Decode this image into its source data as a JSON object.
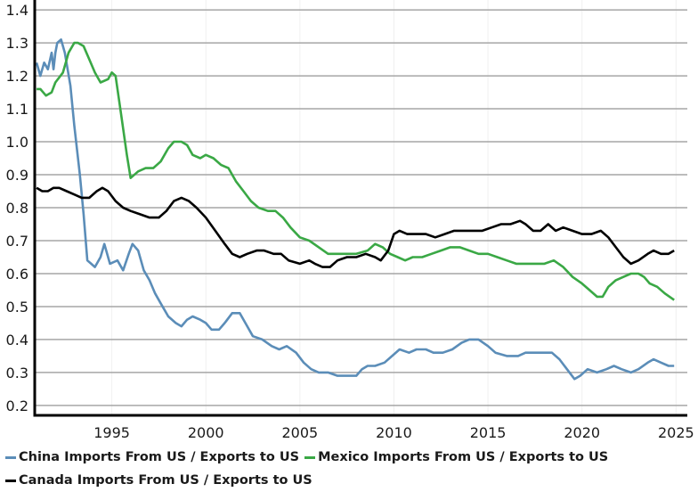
{
  "chart_data": {
    "type": "line",
    "title": "",
    "xlabel": "",
    "ylabel": "",
    "xlim": [
      1990.9,
      2025.6
    ],
    "ylim": [
      0.17,
      1.43
    ],
    "grid": {
      "horizontal": true,
      "vertical": "faint"
    },
    "legend_position": "bottom",
    "x_ticks": [
      1995,
      2000,
      2005,
      2010,
      2015,
      2020,
      2025
    ],
    "x_tick_labels": [
      "1995",
      "2000",
      "2005",
      "2010",
      "2015",
      "2020",
      "2025"
    ],
    "y_ticks": [
      0.2,
      0.3,
      0.4,
      0.5,
      0.6,
      0.7,
      0.8,
      0.9,
      1.0,
      1.1,
      1.2,
      1.3,
      1.4
    ],
    "y_tick_labels": [
      "0.2",
      "0.3",
      "0.4",
      "0.5",
      "0.6",
      "0.7",
      "0.8",
      "0.9",
      "1.0",
      "1.1",
      "1.2",
      "1.3",
      "1.4"
    ],
    "series": [
      {
        "name": "China Imports From US / Exports to US",
        "color": "#5b8db8",
        "x": [
          1991.0,
          1991.2,
          1991.4,
          1991.6,
          1991.8,
          1991.9,
          1992.0,
          1992.1,
          1992.3,
          1992.5,
          1992.8,
          1993.0,
          1993.3,
          1993.5,
          1993.7,
          1993.9,
          1994.1,
          1994.4,
          1994.6,
          1994.9,
          1995.3,
          1995.6,
          1995.9,
          1996.1,
          1996.4,
          1996.7,
          1997.0,
          1997.3,
          1997.6,
          1998.0,
          1998.4,
          1998.7,
          1999.0,
          1999.3,
          1999.7,
          2000.0,
          2000.3,
          2000.7,
          2001.0,
          2001.4,
          2001.8,
          2002.1,
          2002.5,
          2003.0,
          2003.5,
          2003.9,
          2004.3,
          2004.8,
          2005.2,
          2005.6,
          2006.0,
          2006.5,
          2007.0,
          2007.5,
          2008.0,
          2008.3,
          2008.6,
          2009.0,
          2009.5,
          2009.9,
          2010.3,
          2010.8,
          2011.2,
          2011.7,
          2012.1,
          2012.6,
          2013.1,
          2013.6,
          2014.0,
          2014.5,
          2015.0,
          2015.4,
          2016.0,
          2016.6,
          2017.0,
          2017.5,
          2018.0,
          2018.4,
          2018.8,
          2019.2,
          2019.6,
          2019.9,
          2020.3,
          2020.8,
          2021.3,
          2021.7,
          2022.1,
          2022.6,
          2023.0,
          2023.5,
          2023.8,
          2024.2,
          2024.6,
          2024.9
        ],
        "y": [
          1.24,
          1.2,
          1.24,
          1.22,
          1.27,
          1.22,
          1.27,
          1.3,
          1.31,
          1.27,
          1.17,
          1.05,
          0.9,
          0.78,
          0.64,
          0.63,
          0.62,
          0.65,
          0.69,
          0.63,
          0.64,
          0.61,
          0.66,
          0.69,
          0.67,
          0.61,
          0.58,
          0.54,
          0.51,
          0.47,
          0.45,
          0.44,
          0.46,
          0.47,
          0.46,
          0.45,
          0.43,
          0.43,
          0.45,
          0.48,
          0.48,
          0.45,
          0.41,
          0.4,
          0.38,
          0.37,
          0.38,
          0.36,
          0.33,
          0.31,
          0.3,
          0.3,
          0.29,
          0.29,
          0.29,
          0.31,
          0.32,
          0.32,
          0.33,
          0.35,
          0.37,
          0.36,
          0.37,
          0.37,
          0.36,
          0.36,
          0.37,
          0.39,
          0.4,
          0.4,
          0.38,
          0.36,
          0.35,
          0.35,
          0.36,
          0.36,
          0.36,
          0.36,
          0.34,
          0.31,
          0.28,
          0.29,
          0.31,
          0.3,
          0.31,
          0.32,
          0.31,
          0.3,
          0.31,
          0.33,
          0.34,
          0.33,
          0.32,
          0.32
        ]
      },
      {
        "name": "Mexico Imports From US / Exports to US",
        "color": "#3aa845",
        "x": [
          1991.0,
          1991.2,
          1991.5,
          1991.8,
          1992.0,
          1992.4,
          1992.7,
          1993.0,
          1993.2,
          1993.5,
          1993.8,
          1994.1,
          1994.4,
          1994.8,
          1995.0,
          1995.2,
          1995.5,
          1995.8,
          1996.0,
          1996.4,
          1996.8,
          1997.2,
          1997.6,
          1998.0,
          1998.3,
          1998.7,
          1999.0,
          1999.3,
          1999.7,
          2000.0,
          2000.4,
          2000.8,
          2001.2,
          2001.6,
          2002.0,
          2002.4,
          2002.8,
          2003.3,
          2003.7,
          2004.1,
          2004.5,
          2005.0,
          2005.5,
          2006.0,
          2006.5,
          2007.0,
          2007.5,
          2008.0,
          2008.6,
          2009.0,
          2009.4,
          2009.8,
          2010.2,
          2010.6,
          2011.0,
          2011.5,
          2012.0,
          2012.5,
          2013.0,
          2013.5,
          2014.0,
          2014.5,
          2015.0,
          2015.5,
          2016.0,
          2016.5,
          2017.0,
          2017.5,
          2018.0,
          2018.5,
          2019.0,
          2019.5,
          2020.0,
          2020.4,
          2020.8,
          2021.1,
          2021.4,
          2021.8,
          2022.2,
          2022.6,
          2023.0,
          2023.3,
          2023.6,
          2024.0,
          2024.4,
          2024.9
        ],
        "y": [
          1.16,
          1.16,
          1.14,
          1.15,
          1.18,
          1.21,
          1.27,
          1.3,
          1.3,
          1.29,
          1.25,
          1.21,
          1.18,
          1.19,
          1.21,
          1.2,
          1.08,
          0.96,
          0.89,
          0.91,
          0.92,
          0.92,
          0.94,
          0.98,
          1.0,
          1.0,
          0.99,
          0.96,
          0.95,
          0.96,
          0.95,
          0.93,
          0.92,
          0.88,
          0.85,
          0.82,
          0.8,
          0.79,
          0.79,
          0.77,
          0.74,
          0.71,
          0.7,
          0.68,
          0.66,
          0.66,
          0.66,
          0.66,
          0.67,
          0.69,
          0.68,
          0.66,
          0.65,
          0.64,
          0.65,
          0.65,
          0.66,
          0.67,
          0.68,
          0.68,
          0.67,
          0.66,
          0.66,
          0.65,
          0.64,
          0.63,
          0.63,
          0.63,
          0.63,
          0.64,
          0.62,
          0.59,
          0.57,
          0.55,
          0.53,
          0.53,
          0.56,
          0.58,
          0.59,
          0.6,
          0.6,
          0.59,
          0.57,
          0.56,
          0.54,
          0.52
        ]
      },
      {
        "name": "Canada Imports From US / Exports to US",
        "color": "#000000",
        "x": [
          1991.0,
          1991.3,
          1991.6,
          1991.9,
          1992.2,
          1992.6,
          1993.0,
          1993.4,
          1993.8,
          1994.2,
          1994.5,
          1994.8,
          1995.2,
          1995.6,
          1996.0,
          1996.5,
          1997.0,
          1997.5,
          1997.9,
          1998.3,
          1998.7,
          1999.1,
          1999.5,
          2000.0,
          2000.5,
          2001.0,
          2001.4,
          2001.8,
          2002.2,
          2002.7,
          2003.1,
          2003.6,
          2004.0,
          2004.4,
          2005.0,
          2005.5,
          2005.8,
          2006.2,
          2006.6,
          2007.0,
          2007.5,
          2008.0,
          2008.5,
          2009.0,
          2009.3,
          2009.7,
          2010.0,
          2010.3,
          2010.7,
          2011.2,
          2011.7,
          2012.2,
          2012.7,
          2013.2,
          2013.7,
          2014.2,
          2014.7,
          2015.2,
          2015.7,
          2016.2,
          2016.7,
          2017.0,
          2017.4,
          2017.8,
          2018.2,
          2018.6,
          2019.0,
          2019.5,
          2020.0,
          2020.5,
          2021.0,
          2021.4,
          2021.8,
          2022.2,
          2022.6,
          2023.0,
          2023.5,
          2023.8,
          2024.2,
          2024.6,
          2024.9
        ],
        "y": [
          0.86,
          0.85,
          0.85,
          0.86,
          0.86,
          0.85,
          0.84,
          0.83,
          0.83,
          0.85,
          0.86,
          0.85,
          0.82,
          0.8,
          0.79,
          0.78,
          0.77,
          0.77,
          0.79,
          0.82,
          0.83,
          0.82,
          0.8,
          0.77,
          0.73,
          0.69,
          0.66,
          0.65,
          0.66,
          0.67,
          0.67,
          0.66,
          0.66,
          0.64,
          0.63,
          0.64,
          0.63,
          0.62,
          0.62,
          0.64,
          0.65,
          0.65,
          0.66,
          0.65,
          0.64,
          0.67,
          0.72,
          0.73,
          0.72,
          0.72,
          0.72,
          0.71,
          0.72,
          0.73,
          0.73,
          0.73,
          0.73,
          0.74,
          0.75,
          0.75,
          0.76,
          0.75,
          0.73,
          0.73,
          0.75,
          0.73,
          0.74,
          0.73,
          0.72,
          0.72,
          0.73,
          0.71,
          0.68,
          0.65,
          0.63,
          0.64,
          0.66,
          0.67,
          0.66,
          0.66,
          0.67
        ]
      }
    ]
  },
  "legend": {
    "items": [
      {
        "label": "China Imports From US / Exports to US",
        "color": "#5b8db8"
      },
      {
        "label": "Mexico Imports From US / Exports to US",
        "color": "#3aa845"
      },
      {
        "label": "Canada Imports From US / Exports to US",
        "color": "#000000"
      }
    ]
  }
}
